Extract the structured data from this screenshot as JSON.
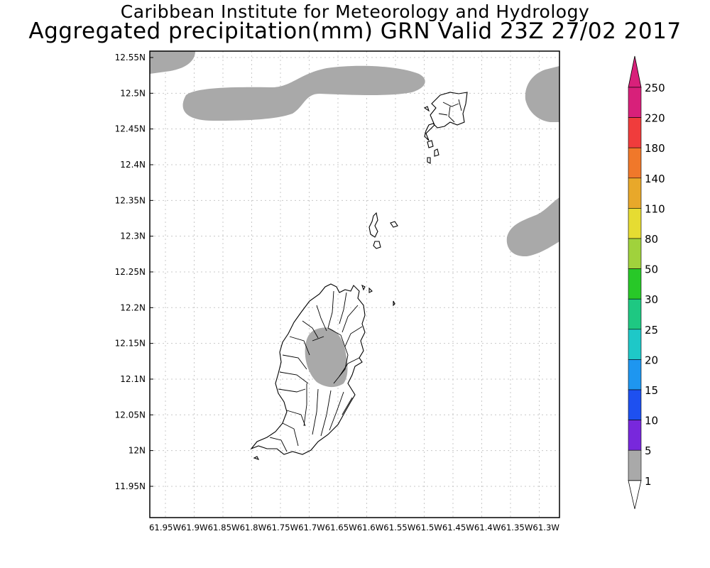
{
  "header": {
    "title": "Caribbean Institute for Meteorology and Hydrology",
    "subtitle": "Aggregated precipitation(mm) GRN Valid 23Z 27/02 2017"
  },
  "map": {
    "lat_labels": [
      "12.55N",
      "12.5N",
      "12.45N",
      "12.4N",
      "12.35N",
      "12.3N",
      "12.25N",
      "12.2N",
      "12.15N",
      "12.1N",
      "12.05N",
      "12N",
      "11.95N"
    ],
    "lon_labels": [
      "61.95W",
      "61.9W",
      "61.85W",
      "61.8W",
      "61.75W",
      "61.7W",
      "61.65W",
      "61.6W",
      "61.55W",
      "61.5W",
      "61.45W",
      "61.4W",
      "61.35W",
      "61.3W"
    ],
    "lon_label_line": "61.95W61.9W61.85W61.8W61.75W61.7W61.65W61.6W61.55W61.5W61.45W61.4W61.35W61.3W",
    "precip_color": "#a9a9a9"
  },
  "legend": {
    "levels": [
      {
        "label": "250",
        "color": "#d8207a"
      },
      {
        "label": "220",
        "color": "#f03c3c"
      },
      {
        "label": "180",
        "color": "#f0782a"
      },
      {
        "label": "140",
        "color": "#e8a82a"
      },
      {
        "label": "110",
        "color": "#e6dc32"
      },
      {
        "label": "80",
        "color": "#a0d23c"
      },
      {
        "label": "50",
        "color": "#28c828"
      },
      {
        "label": "30",
        "color": "#1ec882"
      },
      {
        "label": "25",
        "color": "#1ec8c8"
      },
      {
        "label": "20",
        "color": "#1e96f0"
      },
      {
        "label": "15",
        "color": "#1e50f0"
      },
      {
        "label": "10",
        "color": "#7828dc"
      },
      {
        "label": "5",
        "color": "#a01ebe"
      },
      {
        "label": "1",
        "color": "#a9a9a9"
      }
    ],
    "top_color": "#d8207a"
  }
}
